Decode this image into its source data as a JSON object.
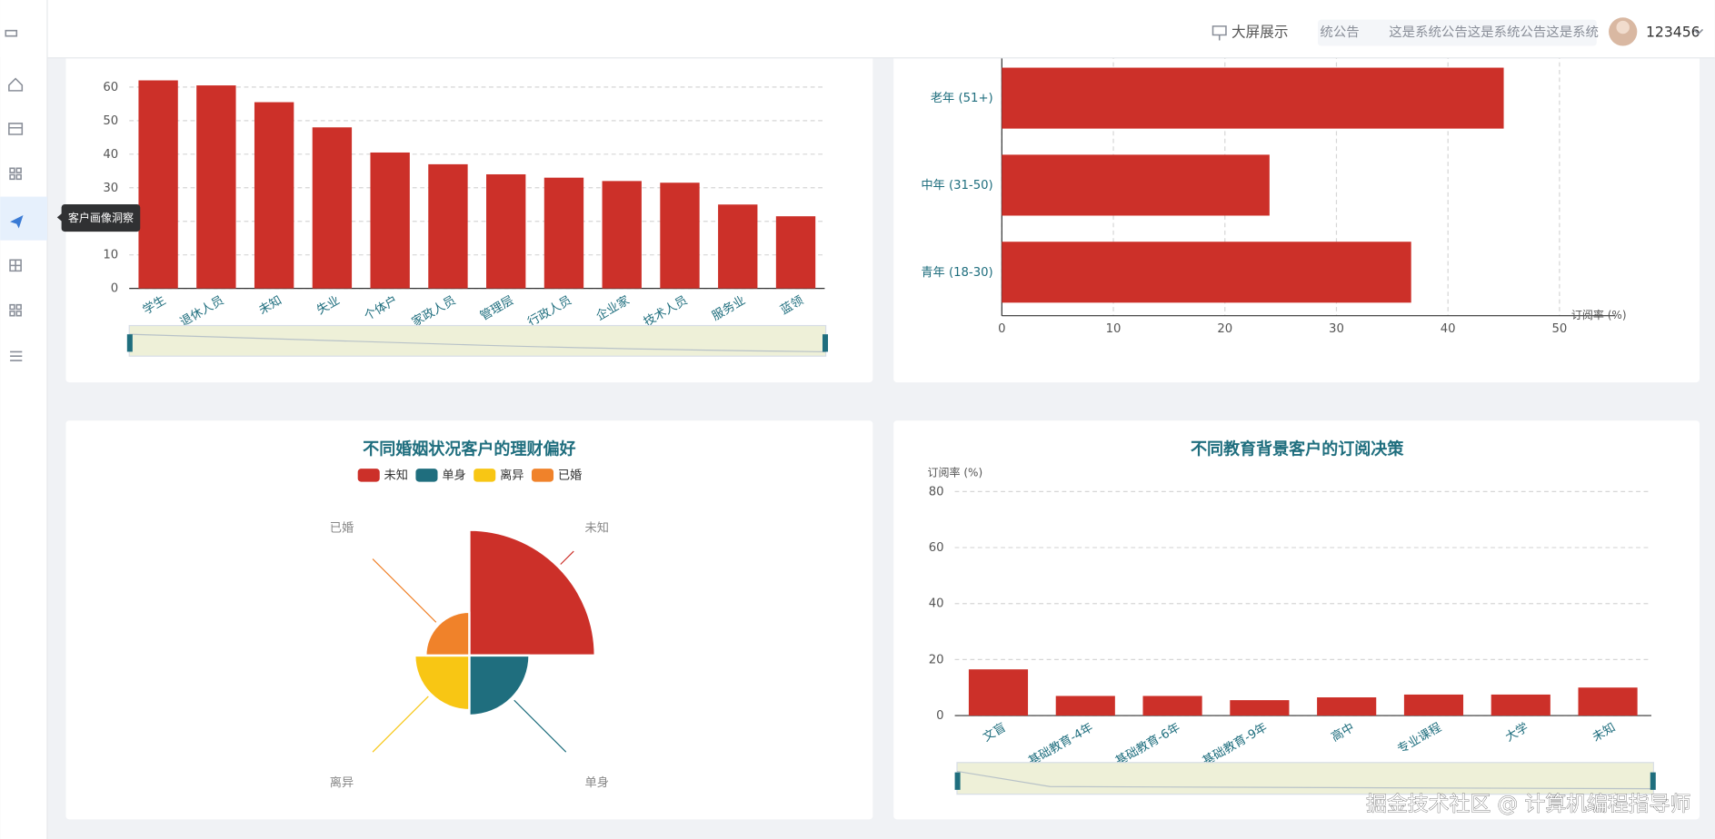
{
  "header": {
    "big_screen": "大屏展示",
    "notice_label": "统公告",
    "notice_text": "这是系统公告这是系统公告这是系统",
    "username": "123456"
  },
  "sidebar": {
    "tooltip": "客户画像洞察"
  },
  "watermark": "掘金技术社区 @ 计算机编程指导师",
  "chart_data": [
    {
      "type": "bar",
      "color": "#cc3029",
      "categories": [
        "学生",
        "退休人员",
        "未知",
        "失业",
        "个体户",
        "家政人员",
        "管理层",
        "行政人员",
        "企业家",
        "技术人员",
        "服务业",
        "蓝领"
      ],
      "values": [
        62,
        60.5,
        55.5,
        48,
        40.5,
        37,
        34,
        33,
        32,
        31.5,
        25,
        21.5
      ],
      "ylim": [
        0,
        70
      ],
      "yticks": [
        0,
        10,
        20,
        30,
        40,
        50,
        60
      ],
      "grid": true
    },
    {
      "type": "hbar",
      "color": "#cc3029",
      "xlabel": "订阅率 (%)",
      "categories": [
        "青年 (18-30)",
        "中年 (31-50)",
        "老年 (51+)"
      ],
      "values": [
        36.7,
        24,
        45
      ],
      "xlim": [
        0,
        55
      ],
      "xticks": [
        0,
        10,
        20,
        30,
        40,
        50
      ],
      "grid": true
    },
    {
      "type": "pie",
      "rose": true,
      "title": "不同婚姻状况客户的理财偏好",
      "categories": [
        "未知",
        "单身",
        "离异",
        "已婚"
      ],
      "values": [
        46,
        22,
        20,
        16
      ],
      "colors": [
        "#cc3029",
        "#1f6e7e",
        "#f8c614",
        "#f0822a"
      ]
    },
    {
      "type": "bar",
      "color": "#cc3029",
      "title": "不同教育背景客户的订阅决策",
      "ylabel": "订阅率 (%)",
      "categories": [
        "文盲",
        "基础教育-4年",
        "基础教育-6年",
        "基础教育-9年",
        "高中",
        "专业课程",
        "大学",
        "未知"
      ],
      "values": [
        16.5,
        7,
        7,
        5.5,
        6.5,
        7.5,
        7.5,
        10
      ],
      "ylim": [
        0,
        80
      ],
      "yticks": [
        0,
        20,
        40,
        60,
        80
      ],
      "grid": true
    }
  ]
}
